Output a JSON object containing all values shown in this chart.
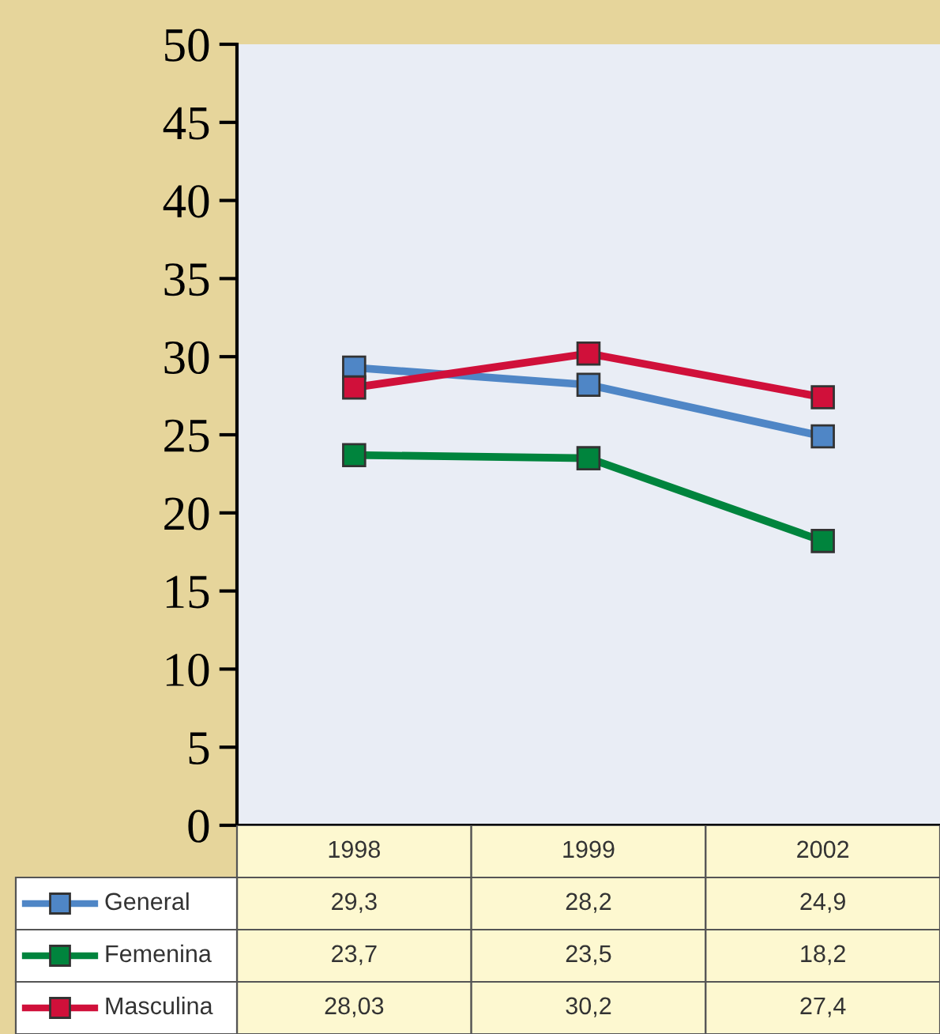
{
  "chart_data": {
    "type": "line",
    "categories": [
      "1998",
      "1999",
      "2002"
    ],
    "series": [
      {
        "name": "General",
        "color": "#4f86c6",
        "values": [
          29.3,
          28.2,
          24.9
        ],
        "value_labels": [
          "29,3",
          "28,2",
          "24,9"
        ]
      },
      {
        "name": "Femenina",
        "color": "#00843d",
        "values": [
          23.7,
          23.5,
          18.2
        ],
        "value_labels": [
          "23,7",
          "23,5",
          "18,2"
        ]
      },
      {
        "name": "Masculina",
        "color": "#d0103a",
        "values": [
          28.03,
          30.2,
          27.4
        ],
        "value_labels": [
          "28,03",
          "30,2",
          "27,4"
        ]
      }
    ],
    "ylim": [
      0,
      50
    ],
    "yticks": [
      0,
      5,
      10,
      15,
      20,
      25,
      30,
      35,
      40,
      45,
      50
    ],
    "marker": "square",
    "line_style": "solid",
    "grid": false,
    "legend": "bottom left"
  }
}
